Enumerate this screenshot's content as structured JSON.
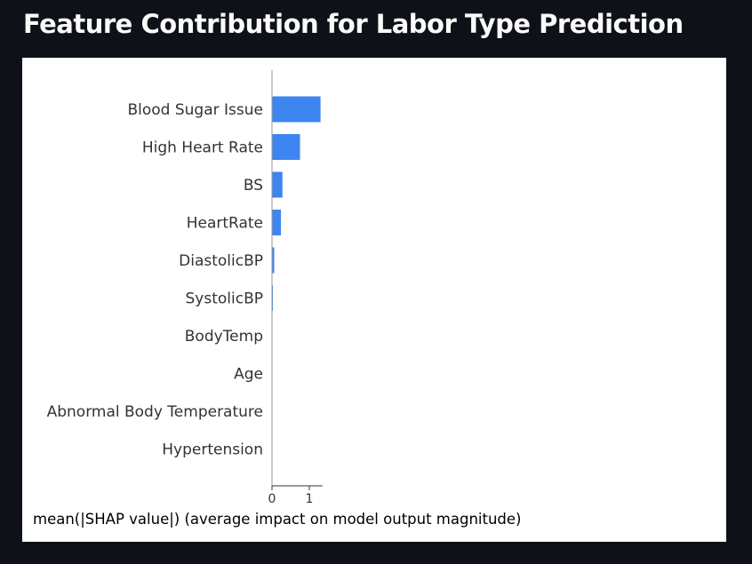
{
  "page": {
    "title": "Feature Contribution for Labor Type Prediction"
  },
  "chart_data": {
    "type": "bar",
    "orientation": "horizontal",
    "categories": [
      "Blood Sugar Issue",
      "High Heart Rate",
      "BS",
      "HeartRate",
      "DiastolicBP",
      "SystolicBP",
      "BodyTemp",
      "Age",
      "Abnormal Body Temperature",
      "Hypertension"
    ],
    "values": [
      1.3,
      0.75,
      0.28,
      0.24,
      0.06,
      0.01,
      0.0,
      0.0,
      0.0,
      0.0
    ],
    "xlabel": "mean(|SHAP value|) (average impact on model output magnitude)",
    "ylabel": "",
    "xlim": [
      0,
      1.35
    ],
    "xticks": [
      0,
      1
    ],
    "bar_color": "#3d85f0",
    "grid": false
  }
}
